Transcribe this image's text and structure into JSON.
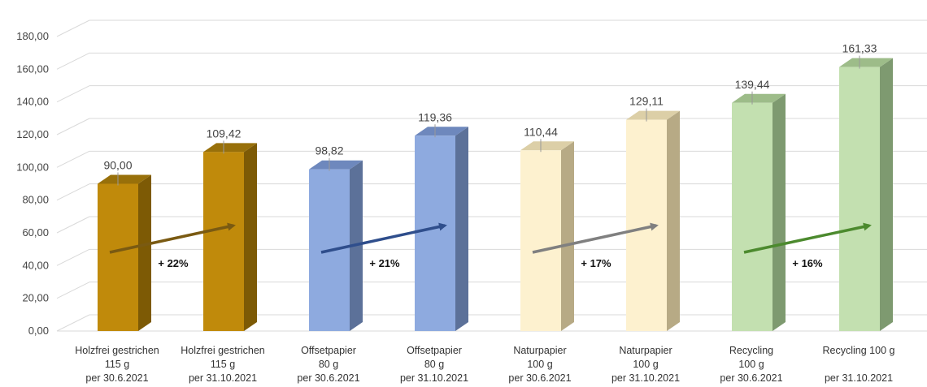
{
  "chart_data": {
    "type": "bar",
    "style": "3d-column",
    "ylim": [
      0,
      180
    ],
    "yticks": [
      "0,00",
      "20,00",
      "40,00",
      "60,00",
      "80,00",
      "100,00",
      "120,00",
      "140,00",
      "160,00",
      "180,00"
    ],
    "grid": true,
    "categories": [
      [
        "Holzfrei gestrichen",
        "115 g",
        "per 30.6.2021"
      ],
      [
        "Holzfrei gestrichen",
        "115 g",
        "per 31.10.2021"
      ],
      [
        "Offsetpapier",
        "80 g",
        "per 30.6.2021"
      ],
      [
        "Offsetpapier",
        "80 g",
        "per 31.10.2021"
      ],
      [
        "Naturpapier",
        "100 g",
        "per 30.6.2021"
      ],
      [
        "Naturpapier",
        "100 g",
        "per 31.10.2021"
      ],
      [
        "Recycling",
        "100 g",
        "per 30.6.2021"
      ],
      [
        "Recycling 100 g",
        "",
        "per 31.10.2021"
      ]
    ],
    "values": [
      90.0,
      109.42,
      98.82,
      119.36,
      110.44,
      129.11,
      139.44,
      161.33
    ],
    "value_labels": [
      "90,00",
      "109,42",
      "98,82",
      "119,36",
      "110,44",
      "129,11",
      "139,44",
      "161,33"
    ],
    "bar_colors": [
      "#C08A0B",
      "#C08A0B",
      "#8EAADF",
      "#8EAADF",
      "#FDF1CF",
      "#FDF1CF",
      "#C3E0B0",
      "#C3E0B0"
    ],
    "side_colors": [
      "#7D5A05",
      "#7D5A05",
      "#5C7199",
      "#5C7199",
      "#B7AA85",
      "#B7AA85",
      "#7E9A70",
      "#7E9A70"
    ],
    "top_colors": [
      "#98700A",
      "#98700A",
      "#6E88BD",
      "#6E88BD",
      "#DCCFA7",
      "#DCCFA7",
      "#9DBC89",
      "#9DBC89"
    ],
    "increases": [
      {
        "label": "+ 22%",
        "color": "#7A5A12"
      },
      {
        "label": "+ 21%",
        "color": "#2F4E8C"
      },
      {
        "label": "+ 17%",
        "color": "#808080"
      },
      {
        "label": "+ 16%",
        "color": "#4C8A2E"
      }
    ]
  }
}
